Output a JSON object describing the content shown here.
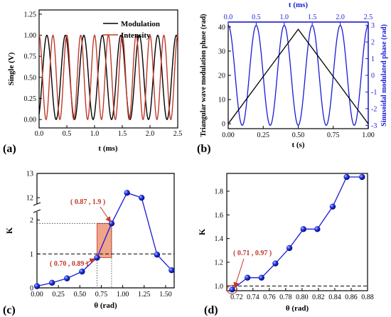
{
  "chart_data": [
    {
      "panel": "(a)",
      "type": "line",
      "xlabel": "t (ms)",
      "ylabel": "Single (V)",
      "xlim": [
        0,
        2.5
      ],
      "ylim": [
        -0.1,
        1.3
      ],
      "xticks": [
        0.0,
        0.5,
        1.0,
        1.5,
        2.0,
        2.5
      ],
      "yticks": [
        0.0,
        0.25,
        0.5,
        0.75,
        1.0,
        1.25
      ],
      "grid": false,
      "legend": "top-right",
      "series": [
        {
          "name": "Modulation",
          "color": "#000000",
          "frequency_per_ms": 3.0,
          "amplitude_range": [
            0.0,
            1.0
          ]
        },
        {
          "name": "Intensity",
          "color": "#c0392b",
          "frequency_per_ms": 4.0,
          "amplitude_range": [
            0.0,
            1.0
          ]
        }
      ]
    },
    {
      "panel": "(b)",
      "type": "line",
      "xlabel": "t (s)",
      "ylabel": "Triangular wave modulation phase (rad)",
      "x2label": "t (ms)",
      "y2label": "Sinusoidal modulated phase (rad)",
      "xlim": [
        0.0,
        1.0
      ],
      "ylim": [
        -2,
        42
      ],
      "x2lim": [
        0.0,
        2.5
      ],
      "y2lim": [
        -3.2,
        3.2
      ],
      "xticks": [
        0.0,
        0.25,
        0.5,
        0.75,
        1.0
      ],
      "yticks": [
        0,
        10,
        20,
        30,
        40
      ],
      "x2ticks": [
        0.0,
        0.5,
        1.0,
        1.5,
        2.0,
        2.5
      ],
      "y2ticks": [
        -3,
        -2,
        -1,
        0,
        1,
        2,
        3
      ],
      "series": [
        {
          "name": "Triangular wave",
          "color": "#000000",
          "x": [
            0.0,
            0.5,
            1.0
          ],
          "y": [
            0,
            39,
            0
          ]
        },
        {
          "name": "Sinusoidal",
          "color": "#1a1ad6",
          "amplitude": 3.0
        }
      ]
    },
    {
      "panel": "(c)",
      "type": "line",
      "xlabel": "θ (rad)",
      "ylabel": "K",
      "xlim": [
        0.0,
        1.6
      ],
      "xticks": [
        0.0,
        0.25,
        0.5,
        0.75,
        1.0,
        1.25,
        1.5
      ],
      "yticks": [
        0,
        1,
        2,
        12,
        13
      ],
      "axis_break": [
        2.2,
        11.8
      ],
      "reference_line": 1.0,
      "x": [
        0.0,
        0.175,
        0.35,
        0.525,
        0.7,
        0.87,
        1.05,
        1.22,
        1.4,
        1.57
      ],
      "y": [
        0.05,
        0.15,
        0.28,
        0.48,
        0.89,
        1.9,
        12.2,
        12.0,
        0.98,
        0.52
      ],
      "color": "#1a1ad6",
      "highlight_region": {
        "x": [
          0.7,
          0.87
        ],
        "y": [
          0.89,
          1.9
        ],
        "color": "#f2a48a"
      },
      "annotations": [
        "( 0.70 , 0.89 )",
        "( 0.87 , 1.9 )"
      ]
    },
    {
      "panel": "(d)",
      "type": "line",
      "xlabel": "θ (rad)",
      "ylabel": "K",
      "xlim": [
        0.708,
        0.88
      ],
      "ylim": [
        0.96,
        1.95
      ],
      "xticks": [
        0.72,
        0.74,
        0.76,
        0.78,
        0.8,
        0.82,
        0.84,
        0.86,
        0.88
      ],
      "yticks": [
        1.0,
        1.2,
        1.4,
        1.6,
        1.8
      ],
      "reference_line": 1.0,
      "x": [
        0.7145,
        0.7333,
        0.7504,
        0.7674,
        0.7845,
        0.8016,
        0.8186,
        0.8374,
        0.8545,
        0.8733
      ],
      "y": [
        0.97,
        1.07,
        1.07,
        1.19,
        1.32,
        1.48,
        1.48,
        1.67,
        1.92,
        1.92
      ],
      "color": "#1a1ad6",
      "annotations": [
        "( 0.71 , 0.97 )"
      ]
    }
  ]
}
